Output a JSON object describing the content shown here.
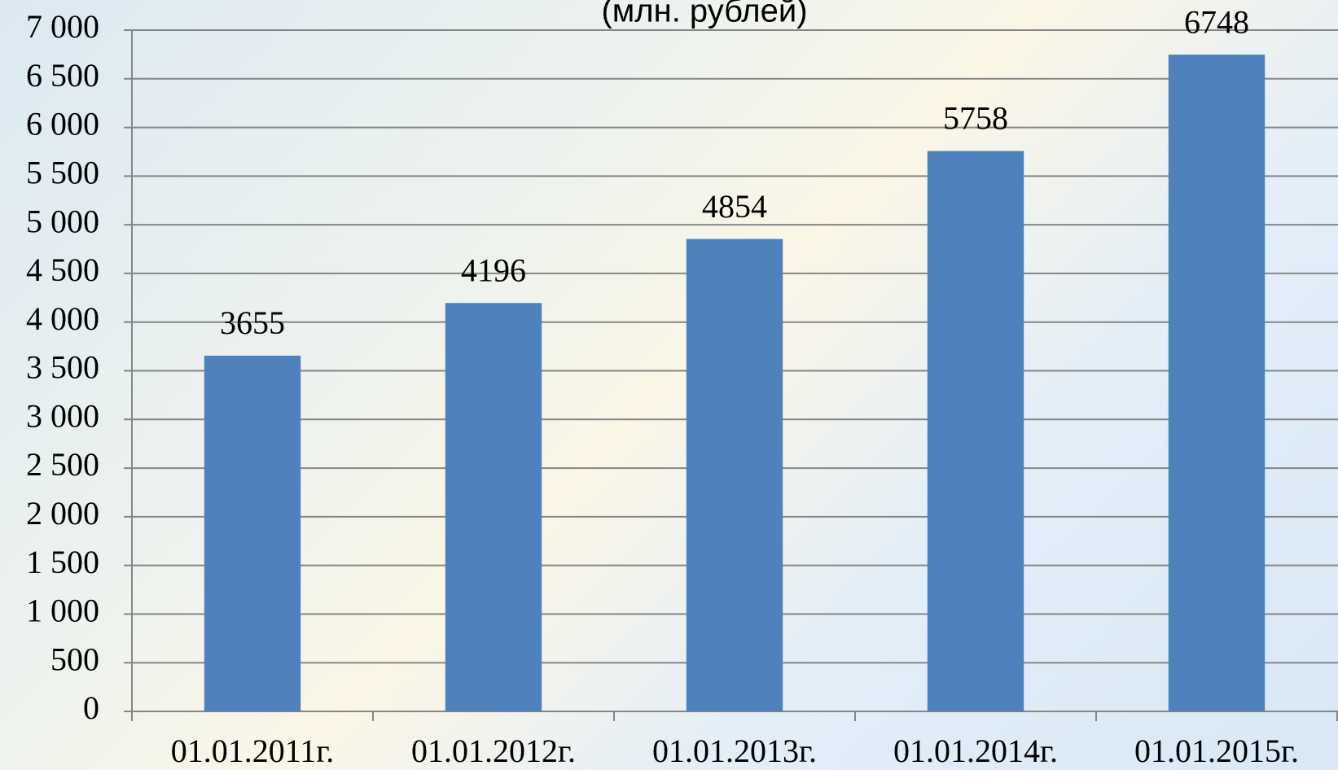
{
  "chart_data": {
    "type": "bar",
    "title": "(млн. рублей)",
    "categories": [
      "01.01.2011г.",
      "01.01.2012г.",
      "01.01.2013г.",
      "01.01.2014г.",
      "01.01.2015г."
    ],
    "values": [
      3655,
      4196,
      4854,
      5758,
      6748
    ],
    "color": "#4f81bd",
    "ylim": [
      0,
      7000
    ],
    "yticks": [
      0,
      500,
      {
        "value": 1000,
        "label": "1 000"
      },
      {
        "value": 1500,
        "label": "1 500"
      },
      {
        "value": 2000,
        "label": "2 000"
      },
      {
        "value": 2500,
        "label": "2 500"
      },
      {
        "value": 3000,
        "label": "3 000"
      },
      {
        "value": 3500,
        "label": "3 500"
      },
      {
        "value": 4000,
        "label": "4 000"
      },
      {
        "value": 4500,
        "label": "4 500"
      },
      {
        "value": 5000,
        "label": "5 000"
      },
      {
        "value": 5500,
        "label": "5 500"
      },
      {
        "value": 6000,
        "label": "6 000"
      },
      {
        "value": 6500,
        "label": "6 500"
      },
      {
        "value": 7000,
        "label": "7 000"
      }
    ],
    "grid": true
  }
}
